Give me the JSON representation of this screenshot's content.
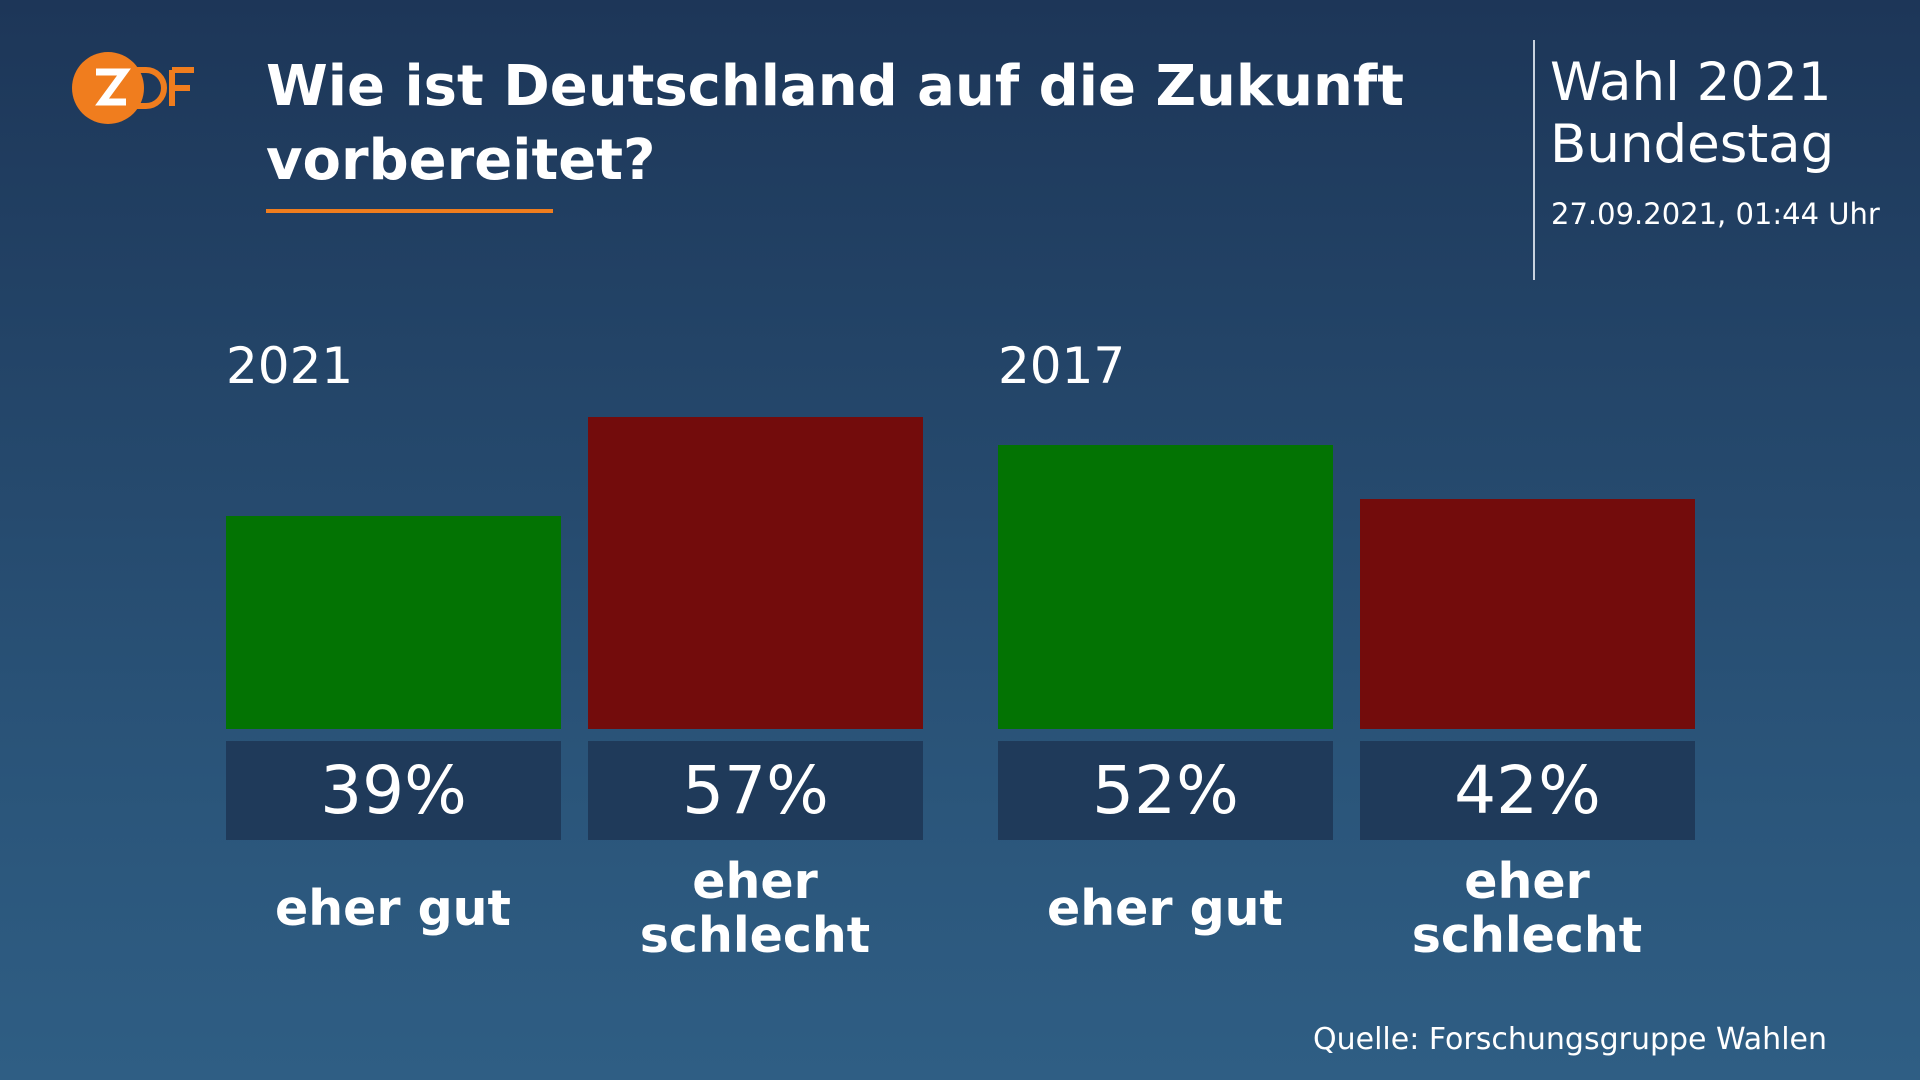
{
  "header": {
    "title": "Wie ist Deutschland auf die Zukunft vorbereitet?",
    "event": "Wahl 2021",
    "subtitle": "Bundestag",
    "timestamp": "27.09.2021, 01:44 Uhr"
  },
  "source": "Quelle: Forschungsgruppe Wahlen",
  "chart_data": [
    {
      "type": "bar",
      "title": "2021",
      "categories": [
        "eher gut",
        "eher schlecht"
      ],
      "values": [
        39,
        57
      ],
      "value_labels": [
        "39%",
        "57%"
      ],
      "colors": [
        "#037303",
        "#730c0c"
      ]
    },
    {
      "type": "bar",
      "title": "2017",
      "categories": [
        "eher gut",
        "eher schlecht"
      ],
      "values": [
        52,
        42
      ],
      "value_labels": [
        "52%",
        "42%"
      ],
      "colors": [
        "#037303",
        "#730c0c"
      ]
    }
  ]
}
